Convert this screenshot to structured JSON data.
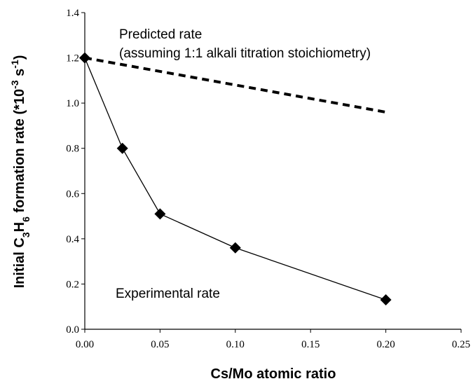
{
  "chart_data": {
    "type": "line",
    "xlabel": "Cs/Mo atomic ratio",
    "ylabel": [
      "Initial C",
      "3",
      "H",
      "6",
      " formation rate (*10",
      "-3",
      " s",
      "-1",
      ")"
    ],
    "series": [
      {
        "name": "Experimental rate",
        "color": "#000000",
        "style": "solid",
        "marker": "diamond",
        "x": [
          0,
          0.025,
          0.05,
          0.1,
          0.2
        ],
        "values": [
          1.2,
          0.8,
          0.51,
          0.36,
          0.13
        ]
      },
      {
        "name": "Predicted rate",
        "color": "#000000",
        "style": "dashed",
        "marker": "none",
        "x": [
          0,
          0.2
        ],
        "values": [
          1.2,
          0.96
        ]
      }
    ],
    "annotations": [
      "(assuming 1:1 alkali titration stoichiometry)"
    ],
    "xlim": [
      0,
      0.25
    ],
    "xticks": [
      {
        "value": 0,
        "label": "0.00"
      },
      {
        "value": 0.05,
        "label": "0.05"
      },
      {
        "value": 0.1,
        "label": "0.10"
      },
      {
        "value": 0.15,
        "label": "0.15"
      },
      {
        "value": 0.2,
        "label": "0.20"
      },
      {
        "value": 0.25,
        "label": "0.25"
      }
    ],
    "ylim": [
      0,
      1.4
    ],
    "yticks": [
      {
        "value": 0,
        "label": "0.0"
      },
      0.2,
      0.4,
      0.6,
      0.8,
      {
        "value": 1,
        "label": "1.0"
      },
      1.2,
      1.4
    ],
    "grid": false
  }
}
